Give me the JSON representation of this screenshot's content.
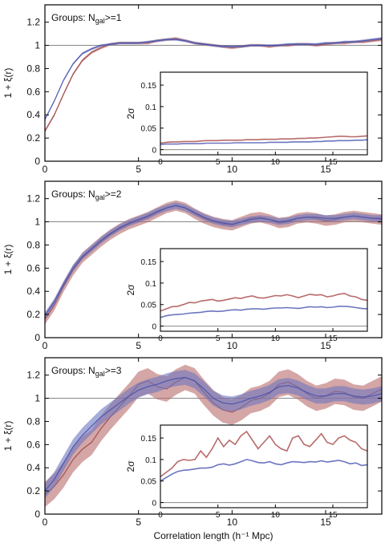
{
  "chart_data": {
    "type": "line",
    "shared": {
      "xlabel": "Correlation length (h⁻¹ Mpc)",
      "ylabel": "1 + ξ(r)",
      "xlim": [
        0,
        18
      ],
      "ylim": [
        0,
        1.35
      ],
      "xticks": [
        0,
        5,
        10,
        15
      ],
      "yticks": [
        0,
        0.2,
        0.4,
        0.6,
        0.8,
        1,
        1.2
      ],
      "reference_line": 1,
      "inset": {
        "ylabel": "2σ",
        "xlim": [
          0,
          18
        ],
        "ylim": [
          -0.012,
          0.18
        ],
        "xticks": [
          0,
          5,
          10,
          15
        ],
        "yticks": [
          0,
          0.05,
          0.1,
          0.15
        ],
        "reference_line": 0
      },
      "colors": {
        "red_band": "#b86a6a",
        "red_line": "#a04848",
        "blue_band": "#6d76c0",
        "blue_line": "#4652ac",
        "reference": "#888888"
      }
    },
    "panels": [
      {
        "label_prefix": "Groups: N",
        "label_sub": "gal",
        "label_suffix": ">=1",
        "x": [
          0,
          0.5,
          1,
          1.5,
          2,
          2.5,
          3,
          3.5,
          4,
          4.5,
          5,
          5.5,
          6,
          6.5,
          7,
          7.5,
          8,
          8.5,
          9,
          9.5,
          10,
          10.5,
          11,
          11.5,
          12,
          12.5,
          13,
          13.5,
          14,
          14.5,
          15,
          15.5,
          16,
          16.5,
          17,
          17.5,
          18
        ],
        "series": [
          {
            "color": "red",
            "values": [
              0.26,
              0.4,
              0.58,
              0.75,
              0.87,
              0.94,
              0.98,
              1.01,
              1.02,
              1.02,
              1.02,
              1.02,
              1.04,
              1.05,
              1.06,
              1.04,
              1.02,
              1.01,
              1.0,
              0.99,
              0.98,
              0.99,
              1.0,
              1.0,
              0.99,
              1.0,
              1.0,
              1.01,
              1.01,
              1.0,
              1.01,
              1.02,
              1.02,
              1.03,
              1.03,
              1.04,
              1.05
            ],
            "halfwidth": 0.012
          },
          {
            "color": "blue",
            "values": [
              0.36,
              0.52,
              0.7,
              0.84,
              0.93,
              0.97,
              1.0,
              1.01,
              1.02,
              1.02,
              1.02,
              1.03,
              1.04,
              1.05,
              1.05,
              1.04,
              1.02,
              1.01,
              1.0,
              0.99,
              0.99,
              0.99,
              1.0,
              1.0,
              1.0,
              1.0,
              1.01,
              1.01,
              1.01,
              1.01,
              1.02,
              1.02,
              1.03,
              1.03,
              1.04,
              1.05,
              1.06
            ],
            "halfwidth": 0.01
          }
        ],
        "inset_series": [
          {
            "color": "red",
            "values": [
              0.015,
              0.017,
              0.018,
              0.018,
              0.019,
              0.019,
              0.019,
              0.02,
              0.021,
              0.021,
              0.021,
              0.022,
              0.022,
              0.022,
              0.022,
              0.023,
              0.023,
              0.023,
              0.024,
              0.024,
              0.024,
              0.025,
              0.025,
              0.025,
              0.026,
              0.026,
              0.027,
              0.027,
              0.028,
              0.029,
              0.03,
              0.031,
              0.031,
              0.03,
              0.03,
              0.031,
              0.032
            ]
          },
          {
            "color": "blue",
            "values": [
              0.012,
              0.013,
              0.013,
              0.013,
              0.014,
              0.014,
              0.014,
              0.014,
              0.015,
              0.015,
              0.015,
              0.015,
              0.015,
              0.016,
              0.016,
              0.016,
              0.016,
              0.016,
              0.016,
              0.017,
              0.017,
              0.017,
              0.017,
              0.018,
              0.018,
              0.018,
              0.018,
              0.019,
              0.019,
              0.02,
              0.02,
              0.021,
              0.021,
              0.021,
              0.022,
              0.022,
              0.023
            ]
          }
        ]
      },
      {
        "label_prefix": "Groups: N",
        "label_sub": "gal",
        "label_suffix": ">=2",
        "x": [
          0,
          0.5,
          1,
          1.5,
          2,
          2.5,
          3,
          3.5,
          4,
          4.5,
          5,
          5.5,
          6,
          6.5,
          7,
          7.5,
          8,
          8.5,
          9,
          9.5,
          10,
          10.5,
          11,
          11.5,
          12,
          12.5,
          13,
          13.5,
          14,
          14.5,
          15,
          15.5,
          16,
          16.5,
          17,
          17.5,
          18
        ],
        "series": [
          {
            "color": "red",
            "values": [
              0.16,
              0.28,
              0.44,
              0.58,
              0.69,
              0.76,
              0.83,
              0.89,
              0.94,
              0.98,
              1.01,
              1.04,
              1.08,
              1.12,
              1.14,
              1.12,
              1.07,
              1.03,
              1.0,
              0.98,
              0.97,
              1.0,
              1.03,
              1.04,
              1.02,
              0.99,
              1.0,
              1.03,
              1.04,
              1.03,
              1.01,
              1.02,
              1.04,
              1.05,
              1.04,
              1.03,
              1.02
            ],
            "halfwidth": 0.045
          },
          {
            "color": "blue",
            "values": [
              0.19,
              0.31,
              0.46,
              0.6,
              0.7,
              0.77,
              0.84,
              0.9,
              0.95,
              0.99,
              1.02,
              1.05,
              1.09,
              1.12,
              1.14,
              1.12,
              1.08,
              1.04,
              1.01,
              0.99,
              0.98,
              1.0,
              1.02,
              1.03,
              1.02,
              1.0,
              1.01,
              1.03,
              1.04,
              1.04,
              1.03,
              1.03,
              1.04,
              1.05,
              1.04,
              1.03,
              1.03
            ],
            "halfwidth": 0.028
          }
        ],
        "inset_series": [
          {
            "color": "red",
            "values": [
              0.035,
              0.04,
              0.045,
              0.046,
              0.05,
              0.055,
              0.054,
              0.058,
              0.06,
              0.062,
              0.058,
              0.06,
              0.063,
              0.066,
              0.064,
              0.068,
              0.07,
              0.066,
              0.065,
              0.068,
              0.071,
              0.07,
              0.073,
              0.07,
              0.066,
              0.07,
              0.074,
              0.072,
              0.073,
              0.068,
              0.07,
              0.074,
              0.076,
              0.07,
              0.068,
              0.062,
              0.06
            ]
          },
          {
            "color": "blue",
            "values": [
              0.02,
              0.024,
              0.026,
              0.027,
              0.028,
              0.03,
              0.031,
              0.032,
              0.034,
              0.035,
              0.034,
              0.035,
              0.037,
              0.038,
              0.037,
              0.039,
              0.04,
              0.04,
              0.039,
              0.041,
              0.042,
              0.042,
              0.043,
              0.042,
              0.041,
              0.043,
              0.045,
              0.044,
              0.045,
              0.043,
              0.044,
              0.046,
              0.046,
              0.045,
              0.043,
              0.041,
              0.04
            ]
          }
        ]
      },
      {
        "label_prefix": "Groups: N",
        "label_sub": "gal",
        "label_suffix": ">=3",
        "x": [
          0,
          0.5,
          1,
          1.5,
          2,
          2.5,
          3,
          3.5,
          4,
          4.5,
          5,
          5.5,
          6,
          6.5,
          7,
          7.5,
          8,
          8.5,
          9,
          9.5,
          10,
          10.5,
          11,
          11.5,
          12,
          12.5,
          13,
          13.5,
          14,
          14.5,
          15,
          15.5,
          16,
          16.5,
          17,
          17.5,
          18
        ],
        "series": [
          {
            "color": "red",
            "values": [
              0.17,
              0.24,
              0.34,
              0.47,
              0.56,
              0.62,
              0.74,
              0.84,
              0.93,
              1.02,
              1.12,
              1.15,
              1.1,
              1.08,
              1.14,
              1.18,
              1.15,
              1.05,
              0.96,
              0.9,
              0.88,
              0.92,
              0.98,
              1.0,
              1.04,
              1.12,
              1.14,
              1.1,
              1.04,
              1.0,
              1.02,
              1.06,
              1.05,
              1.01,
              1.0,
              1.04,
              1.08
            ],
            "halfwidth": 0.11
          },
          {
            "color": "blue",
            "values": [
              0.2,
              0.3,
              0.44,
              0.58,
              0.68,
              0.76,
              0.84,
              0.9,
              0.96,
              1.02,
              1.07,
              1.1,
              1.12,
              1.15,
              1.17,
              1.18,
              1.15,
              1.08,
              1.0,
              0.96,
              0.95,
              0.97,
              1.0,
              1.02,
              1.05,
              1.1,
              1.11,
              1.09,
              1.05,
              1.02,
              1.02,
              1.04,
              1.04,
              1.02,
              1.01,
              1.02,
              1.04
            ],
            "halfwidth": 0.065
          }
        ],
        "inset_series": [
          {
            "color": "red",
            "values": [
              0.06,
              0.07,
              0.08,
              0.095,
              0.1,
              0.098,
              0.1,
              0.12,
              0.105,
              0.125,
              0.15,
              0.13,
              0.145,
              0.135,
              0.155,
              0.165,
              0.145,
              0.125,
              0.14,
              0.155,
              0.135,
              0.125,
              0.12,
              0.15,
              0.155,
              0.135,
              0.13,
              0.145,
              0.16,
              0.14,
              0.135,
              0.15,
              0.155,
              0.145,
              0.14,
              0.125,
              0.12
            ]
          },
          {
            "color": "blue",
            "values": [
              0.05,
              0.058,
              0.066,
              0.072,
              0.075,
              0.076,
              0.078,
              0.08,
              0.08,
              0.082,
              0.088,
              0.09,
              0.087,
              0.09,
              0.095,
              0.1,
              0.097,
              0.093,
              0.092,
              0.095,
              0.09,
              0.088,
              0.092,
              0.095,
              0.094,
              0.093,
              0.095,
              0.094,
              0.097,
              0.094,
              0.096,
              0.098,
              0.095,
              0.09,
              0.092,
              0.086,
              0.088
            ]
          }
        ]
      }
    ]
  }
}
